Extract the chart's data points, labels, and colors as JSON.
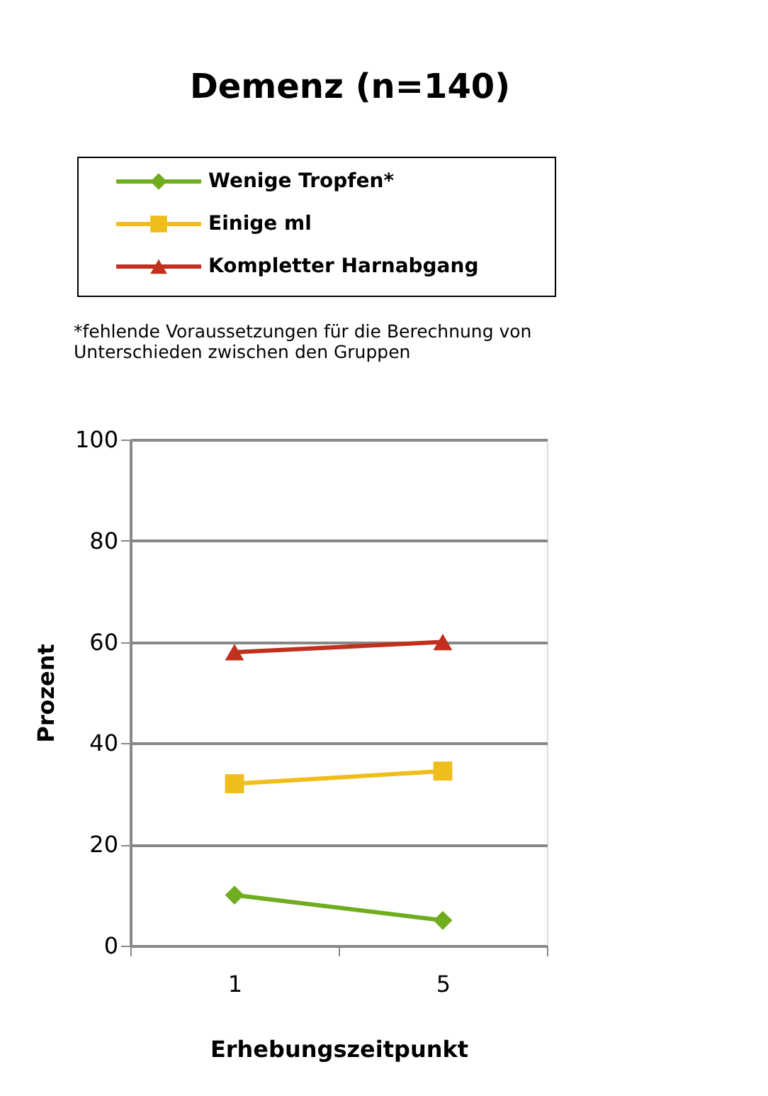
{
  "chart_data": {
    "type": "line",
    "title": "Demenz (n=140)",
    "categories": [
      "1",
      "5"
    ],
    "series": [
      {
        "name": "Wenige Tropfen*",
        "color": "#70ad1e",
        "marker": "diamond",
        "values": [
          10,
          5
        ]
      },
      {
        "name": "Einige ml",
        "color": "#f0be1a",
        "marker": "square",
        "values": [
          32,
          34.5
        ]
      },
      {
        "name": "Kompletter Harnabgang",
        "color": "#c0301c",
        "marker": "triangle",
        "values": [
          58,
          60
        ]
      }
    ],
    "annotations": [
      "*fehlende Voraussetzungen für die Berechnung von\n Unterschieden zwischen den Gruppen"
    ],
    "xlabel": "Erhebungszeitpunkt",
    "ylabel": "Prozent",
    "ylim": [
      0,
      100
    ],
    "yticks": [
      0,
      20,
      40,
      60,
      80,
      100
    ],
    "grid": "y",
    "legend": "top",
    "line_style": "solid"
  }
}
